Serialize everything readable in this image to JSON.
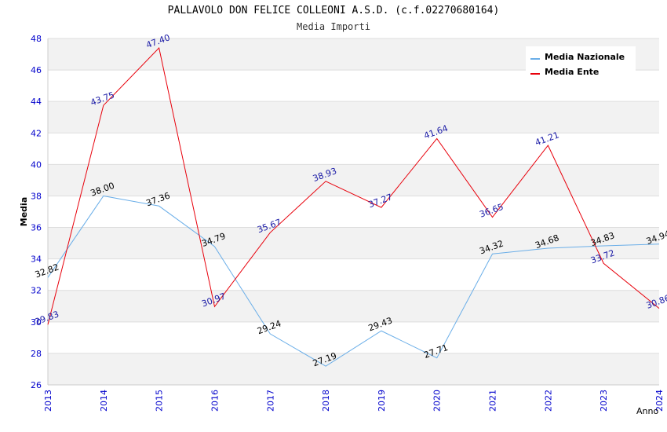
{
  "chart_data": {
    "type": "line",
    "title": "PALLAVOLO DON FELICE COLLEONI A.S.D. (c.f.02270680164)",
    "subtitle": "Media Importi",
    "xlabel": "Anno",
    "ylabel": "Media",
    "x": [
      "2013",
      "2014",
      "2015",
      "2016",
      "2017",
      "2018",
      "2019",
      "2020",
      "2021",
      "2022",
      "2023",
      "2024"
    ],
    "ylim": [
      26,
      48
    ],
    "yticks": [
      26,
      28,
      30,
      32,
      34,
      36,
      38,
      40,
      42,
      44,
      46,
      48
    ],
    "grid": "horizontal bands",
    "legend_position": "top-right",
    "series": [
      {
        "name": "Media Nazionale",
        "color": "#6aaee8",
        "label_color": "#000000",
        "values": [
          32.82,
          38.0,
          37.36,
          34.79,
          29.24,
          27.19,
          29.43,
          27.71,
          34.32,
          34.68,
          34.83,
          34.94
        ],
        "labels": [
          "32.82",
          "38.00",
          "37.36",
          "34.79",
          "29.24",
          "27.19",
          "29.43",
          "27.71",
          "34.32",
          "34.68",
          "34.83",
          "34.94"
        ]
      },
      {
        "name": "Media Ente",
        "color": "#e8000b",
        "label_color": "#1a1aa6",
        "values": [
          29.83,
          43.75,
          47.4,
          30.97,
          35.67,
          38.93,
          37.27,
          41.64,
          36.65,
          41.21,
          33.72,
          30.86
        ],
        "labels": [
          "29.83",
          "43.75",
          "47.40",
          "30.97",
          "35.67",
          "38.93",
          "37.27",
          "41.64",
          "36.65",
          "41.21",
          "33.72",
          "30.86"
        ]
      }
    ],
    "axis_color": "#0000cc",
    "band_color": "#f2f2f2"
  }
}
